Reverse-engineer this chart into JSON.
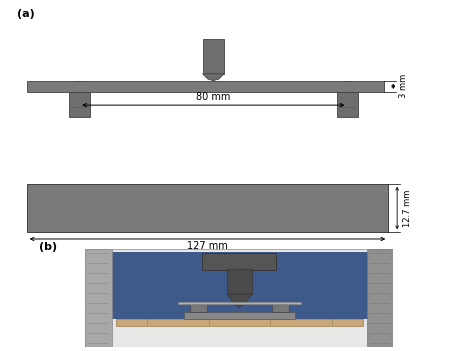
{
  "bg_color": "#ffffff",
  "label_a": "(a)",
  "label_b": "(b)",
  "specimen_color": "#7a7a7a",
  "support_color": "#6e6e6e",
  "dim_80mm": "80 mm",
  "dim_127mm": "127 mm",
  "dim_3mm": "3 mm",
  "dim_127_label": "12.7 mm",
  "figsize": [
    4.74,
    3.51
  ],
  "dpi": 100
}
